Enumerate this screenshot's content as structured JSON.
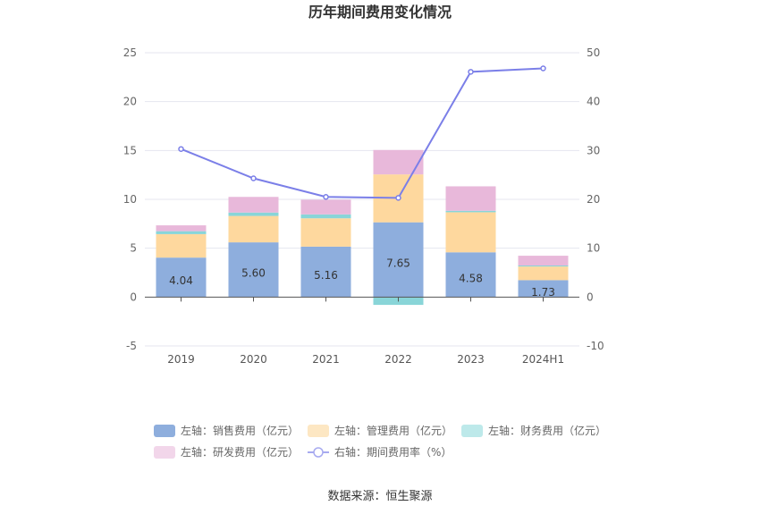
{
  "chart_data": {
    "type": "bar",
    "title": "历年期间费用变化情况",
    "categories": [
      "2019",
      "2020",
      "2021",
      "2022",
      "2023",
      "2024H1"
    ],
    "left_axis": {
      "min": -5,
      "max": 25,
      "ticks": [
        -5,
        0,
        5,
        10,
        15,
        20,
        25
      ]
    },
    "right_axis": {
      "min": -10,
      "max": 50,
      "ticks": [
        -10,
        0,
        10,
        20,
        30,
        40,
        50
      ]
    },
    "series": [
      {
        "name": "左轴：销售费用（亿元）",
        "kind": "bar",
        "color": "#8eaedd",
        "values": [
          4.04,
          5.6,
          5.16,
          7.65,
          4.58,
          1.73
        ],
        "labels": [
          "4.04",
          "5.60",
          "5.16",
          "7.65",
          "4.58",
          "1.73"
        ]
      },
      {
        "name": "左轴：管理费用（亿元）",
        "kind": "bar",
        "color": "#fed89e",
        "values": [
          2.4,
          2.7,
          2.9,
          4.9,
          4.1,
          1.4
        ]
      },
      {
        "name": "左轴：财务费用（亿元）",
        "kind": "bar",
        "color": "#89d5d8",
        "values": [
          0.3,
          0.35,
          0.4,
          -0.8,
          0.15,
          0.1
        ]
      },
      {
        "name": "左轴：研发费用（亿元）",
        "kind": "bar",
        "color": "#e8b8da",
        "values": [
          0.6,
          1.6,
          1.5,
          2.5,
          2.5,
          1.0
        ]
      },
      {
        "name": "右轴：期间费用率（%）",
        "kind": "line",
        "color": "#7b7fe8",
        "values": [
          30.3,
          24.3,
          20.5,
          20.3,
          46.1,
          46.8
        ]
      }
    ],
    "legend": [
      {
        "label": "左轴：销售费用（亿元）",
        "color": "#8eaedd",
        "shape": "rect"
      },
      {
        "label": "左轴：管理费用（亿元）",
        "color": "#fde7c3",
        "shape": "rect"
      },
      {
        "label": "左轴：财务费用（亿元）",
        "color": "#bde9ea",
        "shape": "rect"
      },
      {
        "label": "左轴：研发费用（亿元）",
        "color": "#f2d6ea",
        "shape": "rect"
      },
      {
        "label": "右轴：期间费用率（%）",
        "color": "#a7aaf0",
        "shape": "line"
      }
    ],
    "source": "数据来源：恒生聚源"
  }
}
